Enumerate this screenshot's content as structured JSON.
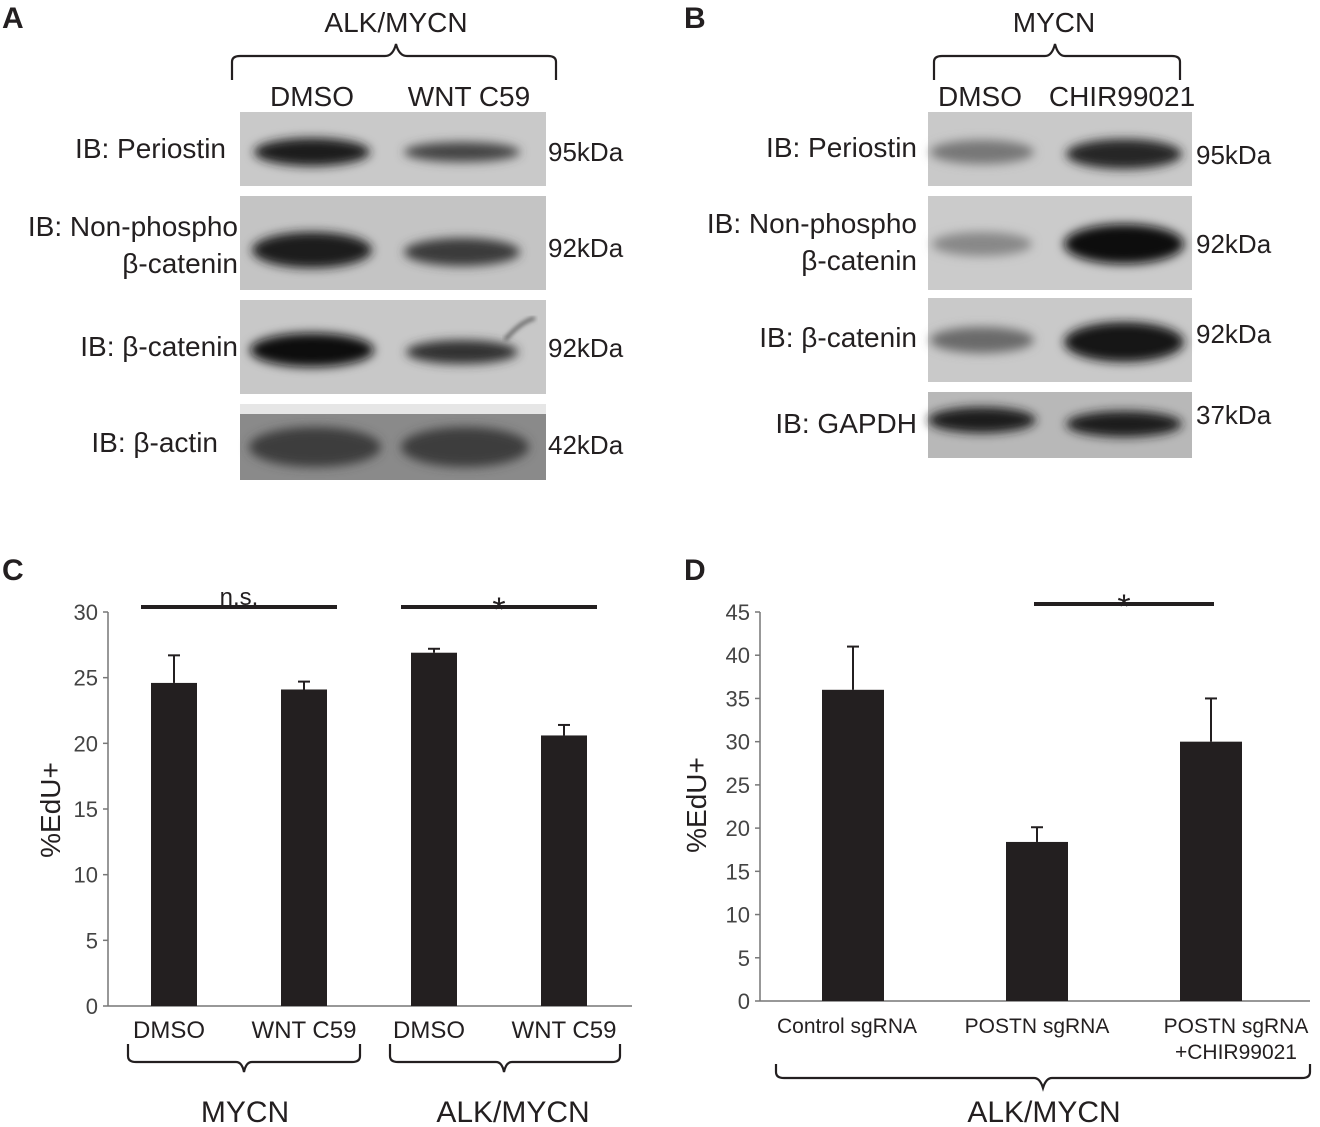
{
  "panels": {
    "A": {
      "letter": "A",
      "group": "ALK/MYCN",
      "lanes": [
        "DMSO",
        "WNT C59"
      ],
      "rows": [
        {
          "label": [
            "IB: Periostin"
          ],
          "mw": "95kDa",
          "bands": [
            0.85,
            0.6
          ]
        },
        {
          "label": [
            "IB: Non-phospho",
            "β-catenin"
          ],
          "mw": "92kDa",
          "bands": [
            0.9,
            0.7
          ]
        },
        {
          "label": [
            "IB: β-catenin"
          ],
          "mw": "92kDa",
          "bands": [
            0.95,
            0.6
          ]
        },
        {
          "label": [
            "IB: β-actin"
          ],
          "mw": "42kDa",
          "bands": [
            0.85,
            0.85
          ]
        }
      ]
    },
    "B": {
      "letter": "B",
      "group": "MYCN",
      "lanes": [
        "DMSO",
        "CHIR99021"
      ],
      "rows": [
        {
          "label": [
            "IB: Periostin"
          ],
          "mw": "95kDa",
          "bands": [
            0.35,
            0.85
          ]
        },
        {
          "label": [
            "IB: Non-phospho",
            "β-catenin"
          ],
          "mw": "92kDa",
          "bands": [
            0.25,
            0.95
          ]
        },
        {
          "label": [
            "IB: β-catenin"
          ],
          "mw": "92kDa",
          "bands": [
            0.35,
            0.95
          ]
        },
        {
          "label": [
            "IB: GAPDH"
          ],
          "mw": "37kDa",
          "bands": [
            0.9,
            0.9
          ]
        }
      ]
    },
    "C": {
      "letter": "C",
      "groups": [
        "MYCN",
        "ALK/MYCN"
      ]
    },
    "D": {
      "letter": "D",
      "groups": [
        "ALK/MYCN"
      ]
    }
  },
  "chart_data": [
    {
      "type": "bar",
      "panel": "C",
      "categories": [
        "DMSO",
        "WNT C59",
        "DMSO",
        "WNT C59"
      ],
      "values": [
        24.6,
        24.1,
        26.9,
        20.6
      ],
      "errors": [
        2.1,
        0.6,
        0.3,
        0.8
      ],
      "ylabel": "%EdU+",
      "ylim": [
        0,
        30
      ],
      "yticks": [
        0,
        5,
        10,
        15,
        20,
        25,
        30
      ],
      "significance": [
        {
          "from": 0,
          "to": 1,
          "label": "n.s."
        },
        {
          "from": 2,
          "to": 3,
          "label": "*"
        }
      ],
      "color": "#231f20"
    },
    {
      "type": "bar",
      "panel": "D",
      "categories": [
        "Control sgRNA",
        "POSTN sgRNA",
        "POSTN sgRNA\n+CHIR99021"
      ],
      "values": [
        36.0,
        18.4,
        30.0
      ],
      "errors": [
        5.0,
        1.7,
        5.0
      ],
      "ylabel": "%EdU+",
      "ylim": [
        0,
        45
      ],
      "yticks": [
        0,
        5,
        10,
        15,
        20,
        25,
        30,
        35,
        40,
        45
      ],
      "significance": [
        {
          "from": 1,
          "to": 2,
          "label": "*"
        }
      ],
      "color": "#231f20"
    }
  ]
}
